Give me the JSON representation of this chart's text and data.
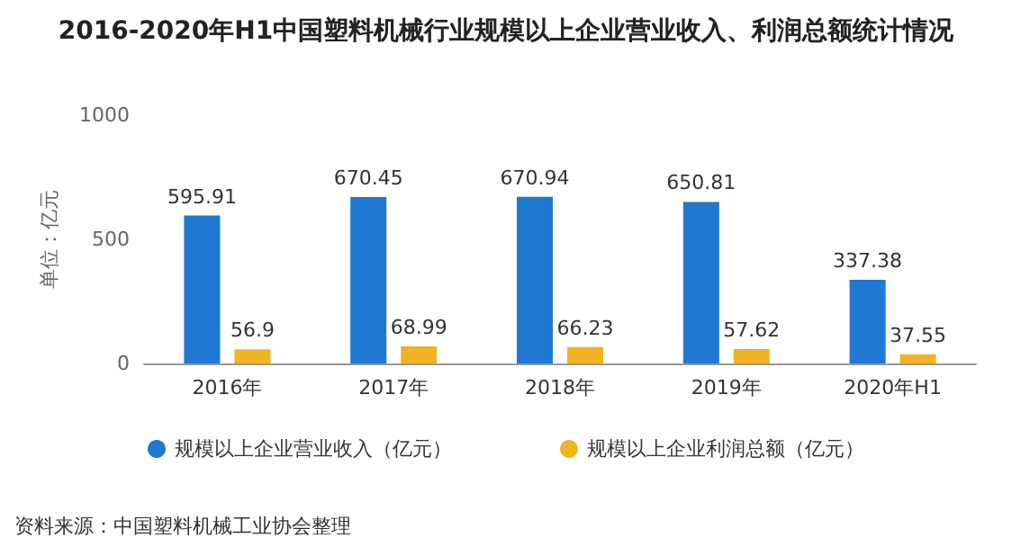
{
  "chart_data": {
    "type": "bar",
    "title": "2016-2020年H1中国塑料机械行业规模以上企业营业收入、利润总额统计情况",
    "ylabel": "单位：亿元",
    "categories": [
      "2016年",
      "2017年",
      "2018年",
      "2019年",
      "2020年H1"
    ],
    "series": [
      {
        "name": "规模以上企业营业收入（亿元）",
        "color": "#1f78d1",
        "values": [
          595.91,
          670.45,
          670.94,
          650.81,
          337.38
        ]
      },
      {
        "name": "规模以上企业利润总额（亿元）",
        "color": "#f0b323",
        "values": [
          56.9,
          68.99,
          66.23,
          57.62,
          37.55
        ]
      }
    ],
    "ylim": [
      0,
      1000
    ],
    "yticks": [
      0,
      500,
      1000
    ],
    "data_labels": true,
    "legend": "bottom",
    "grid": false,
    "annotations": [
      "资料来源：中国塑料机械工业协会整理"
    ]
  }
}
